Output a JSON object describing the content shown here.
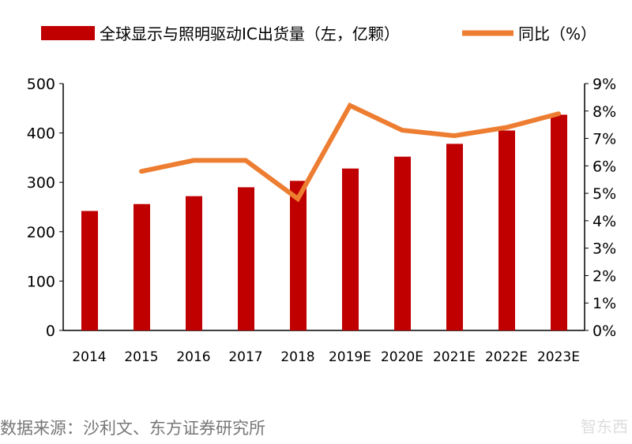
{
  "chart_data": {
    "type": "bar+line",
    "categories": [
      "2014",
      "2015",
      "2016",
      "2017",
      "2018",
      "2019E",
      "2020E",
      "2021E",
      "2022E",
      "2023E"
    ],
    "series": [
      {
        "name": "全球显示与照明驱动IC出货量（左，亿颗）",
        "type": "bar",
        "axis": "left",
        "color": "#C00000",
        "values": [
          242,
          256,
          272,
          290,
          303,
          328,
          352,
          378,
          405,
          437
        ]
      },
      {
        "name": "同比（%）",
        "type": "line",
        "axis": "right",
        "color": "#ED7D31",
        "values": [
          null,
          5.8,
          6.2,
          6.2,
          4.8,
          8.2,
          7.3,
          7.1,
          7.4,
          7.9
        ]
      }
    ],
    "y_left": {
      "range": [
        0,
        500
      ],
      "ticks": [
        "0",
        "100",
        "200",
        "300",
        "400",
        "500"
      ]
    },
    "y_right": {
      "range": [
        0,
        9
      ],
      "ticks": [
        "0%",
        "1%",
        "2%",
        "3%",
        "4%",
        "5%",
        "6%",
        "7%",
        "8%",
        "9%"
      ]
    },
    "legend_position": "top",
    "grid": false
  },
  "source": "数据来源：沙利文、东方证券研究所",
  "watermark": "智东西"
}
